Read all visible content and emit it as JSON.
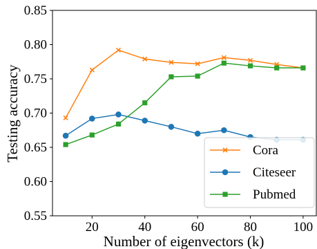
{
  "chart_data": {
    "type": "line",
    "xlabel": "Number of eigenvectors (k)",
    "ylabel": "Testing accuracy",
    "xlim": [
      5,
      105
    ],
    "ylim": [
      0.55,
      0.85
    ],
    "xticks": [
      20,
      40,
      60,
      80,
      100
    ],
    "xtick_labels": [
      "20",
      "40",
      "60",
      "80",
      "100"
    ],
    "yticks": [
      0.55,
      0.6,
      0.65,
      0.7,
      0.75,
      0.8,
      0.85
    ],
    "ytick_labels": [
      "0.55",
      "0.60",
      "0.65",
      "0.70",
      "0.75",
      "0.80",
      "0.85"
    ],
    "grid": false,
    "legend_position": "lower-right",
    "x": [
      10,
      20,
      30,
      40,
      50,
      60,
      70,
      80,
      90,
      100
    ],
    "series": [
      {
        "name": "Cora",
        "color": "#ff7f0e",
        "marker": "x",
        "values": [
          0.693,
          0.763,
          0.792,
          0.779,
          0.774,
          0.772,
          0.781,
          0.777,
          0.771,
          0.766
        ]
      },
      {
        "name": "Citeseer",
        "color": "#1f77b4",
        "marker": "circle",
        "values": [
          0.667,
          0.692,
          0.698,
          0.689,
          0.68,
          0.67,
          0.675,
          0.665,
          0.661,
          0.661
        ]
      },
      {
        "name": "Pubmed",
        "color": "#2ca02c",
        "marker": "square",
        "values": [
          0.654,
          0.668,
          0.684,
          0.715,
          0.753,
          0.754,
          0.773,
          0.769,
          0.766,
          0.766
        ]
      }
    ]
  }
}
